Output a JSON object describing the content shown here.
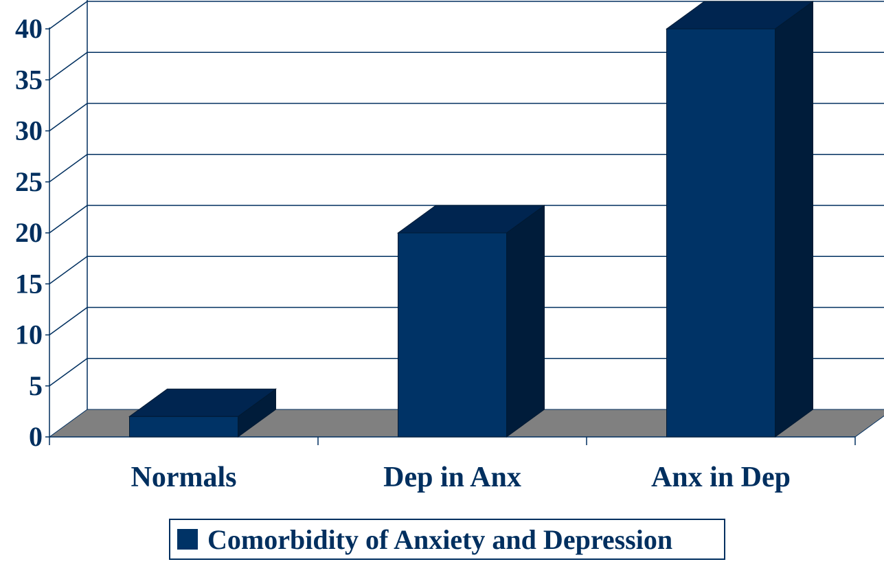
{
  "chart_data": {
    "type": "bar",
    "three_d": true,
    "categories": [
      "Normals",
      "Dep in Anx",
      "Anx in Dep"
    ],
    "series": [
      {
        "name": "Comorbidity of Anxiety and Depression",
        "values": [
          2,
          20,
          40
        ]
      }
    ],
    "ylim": [
      0,
      40
    ],
    "yticks": [
      "0",
      "5",
      "10",
      "15",
      "20",
      "25",
      "30",
      "35",
      "40"
    ],
    "grid": true,
    "legend_position": "bottom",
    "colors": {
      "bar_front": "#003366",
      "bar_top": "#002550",
      "bar_side": "#001c3a",
      "floor": "#808080",
      "text": "#002f5f",
      "grid": "#002f5f"
    }
  }
}
